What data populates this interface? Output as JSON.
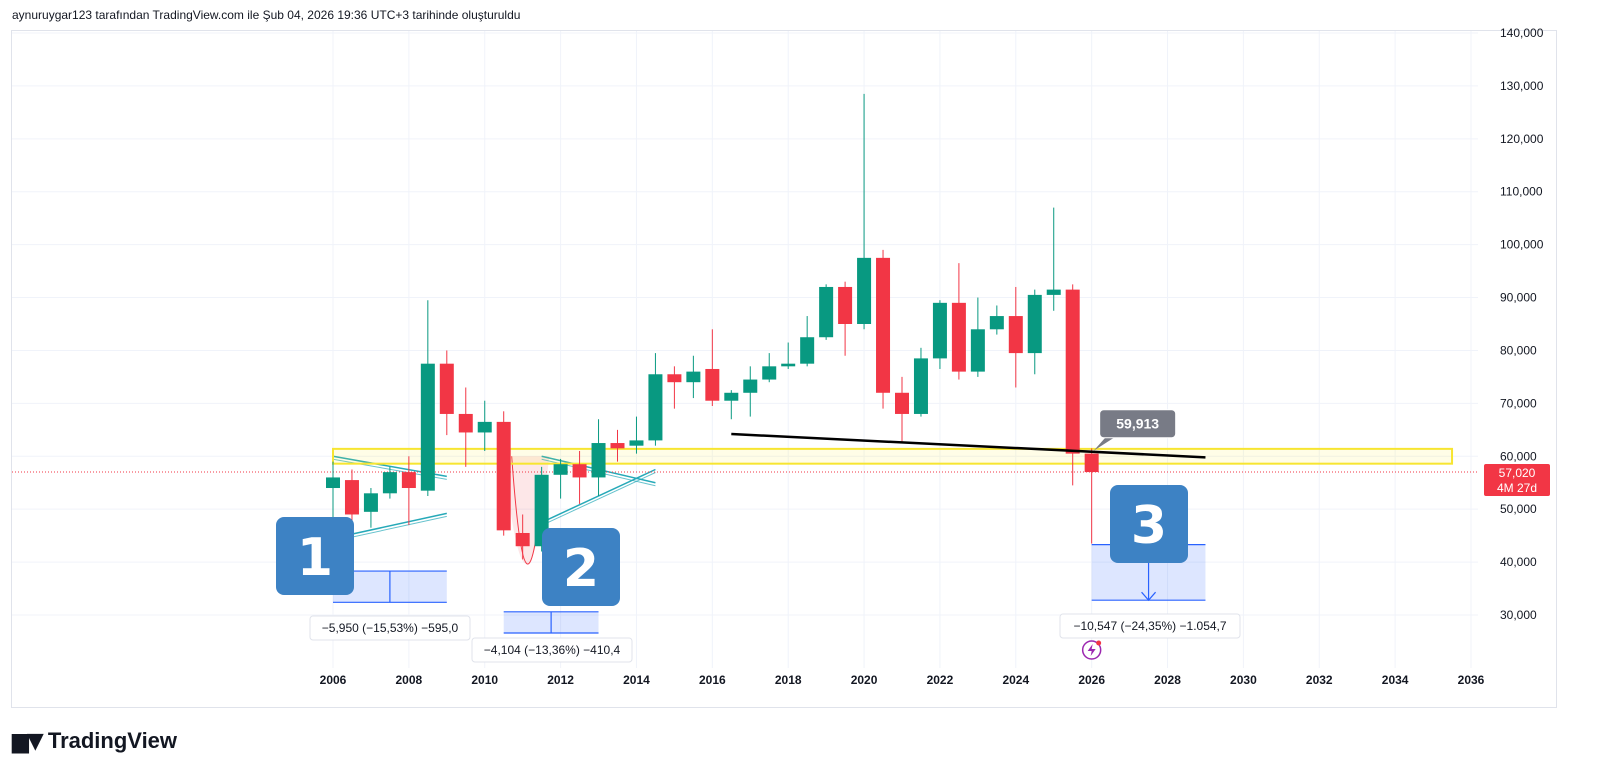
{
  "header": {
    "credit": "aynuruygar123 tarafından TradingView.com ile Şub 04, 2026 19:36 UTC+3 tarihinde oluşturuldu"
  },
  "brand": {
    "name": "TradingView",
    "logo_icon": "tradingview-logo-icon"
  },
  "price_axis": {
    "labels": [
      "140,000",
      "130,000",
      "120,000",
      "110,000",
      "100,000",
      "90,000",
      "80,000",
      "70,000",
      "60,000",
      "50,000",
      "40,000",
      "30,000"
    ],
    "current_price": "57,020",
    "countdown": "4M 27d",
    "current_color": "#f23645"
  },
  "annotations": {
    "callout_value": "59,913",
    "measure_1": "−5,950 (−15,53%) −595,0",
    "measure_2": "−4,104 (−13,36%) −410,4",
    "measure_3": "−10,547 (−24,35%) −1.054,7",
    "labels": [
      "1",
      "2",
      "3"
    ],
    "event_icon": "lightning-icon"
  },
  "colors": {
    "up": "#089981",
    "down": "#f23645",
    "zone": "#f7e531",
    "trend": "#000000",
    "triangle": "#26a9b8",
    "measure": "#2962ff",
    "badge": "#3d82c4"
  },
  "chart_data": {
    "type": "candlestick",
    "interval": "6M",
    "xlabels": [
      "2006",
      "2008",
      "2010",
      "2012",
      "2014",
      "2016",
      "2018",
      "2020",
      "2022",
      "2024",
      "2026",
      "2028",
      "2030",
      "2032",
      "2034",
      "2036"
    ],
    "xlim": [
      2005.5,
      2036.5
    ],
    "ylim": [
      20000,
      141000
    ],
    "candles": [
      {
        "t": 2006.0,
        "o": 54000,
        "h": 59000,
        "l": 48000,
        "c": 56000
      },
      {
        "t": 2006.5,
        "o": 55500,
        "h": 57500,
        "l": 46000,
        "c": 49000
      },
      {
        "t": 2007.0,
        "o": 49500,
        "h": 54000,
        "l": 46500,
        "c": 53000
      },
      {
        "t": 2007.5,
        "o": 53000,
        "h": 58000,
        "l": 52000,
        "c": 57000
      },
      {
        "t": 2008.0,
        "o": 57000,
        "h": 60000,
        "l": 47000,
        "c": 54000
      },
      {
        "t": 2008.5,
        "o": 53500,
        "h": 89500,
        "l": 52500,
        "c": 77500
      },
      {
        "t": 2009.0,
        "o": 77500,
        "h": 80000,
        "l": 64000,
        "c": 68000
      },
      {
        "t": 2009.5,
        "o": 68000,
        "h": 73000,
        "l": 58000,
        "c": 64500
      },
      {
        "t": 2010.0,
        "o": 64500,
        "h": 70500,
        "l": 61000,
        "c": 66500
      },
      {
        "t": 2010.5,
        "o": 66500,
        "h": 68500,
        "l": 45000,
        "c": 46000
      },
      {
        "t": 2011.0,
        "o": 45500,
        "h": 49000,
        "l": 40500,
        "c": 43000
      },
      {
        "t": 2011.5,
        "o": 43000,
        "h": 58000,
        "l": 42000,
        "c": 56500
      },
      {
        "t": 2012.0,
        "o": 56500,
        "h": 59500,
        "l": 52000,
        "c": 58500
      },
      {
        "t": 2012.5,
        "o": 58500,
        "h": 61000,
        "l": 51000,
        "c": 56000
      },
      {
        "t": 2013.0,
        "o": 56000,
        "h": 67000,
        "l": 52500,
        "c": 62500
      },
      {
        "t": 2013.5,
        "o": 62500,
        "h": 65000,
        "l": 59000,
        "c": 61500
      },
      {
        "t": 2014.0,
        "o": 62000,
        "h": 67500,
        "l": 60500,
        "c": 63000
      },
      {
        "t": 2014.5,
        "o": 63000,
        "h": 79500,
        "l": 62000,
        "c": 75500
      },
      {
        "t": 2015.0,
        "o": 75500,
        "h": 77000,
        "l": 69000,
        "c": 74000
      },
      {
        "t": 2015.5,
        "o": 74000,
        "h": 79000,
        "l": 71000,
        "c": 76000
      },
      {
        "t": 2016.0,
        "o": 76500,
        "h": 84000,
        "l": 69500,
        "c": 70500
      },
      {
        "t": 2016.5,
        "o": 70500,
        "h": 72500,
        "l": 67000,
        "c": 72000
      },
      {
        "t": 2017.0,
        "o": 72000,
        "h": 77000,
        "l": 67500,
        "c": 74500
      },
      {
        "t": 2017.5,
        "o": 74500,
        "h": 79500,
        "l": 74000,
        "c": 77000
      },
      {
        "t": 2018.0,
        "o": 77000,
        "h": 81500,
        "l": 76500,
        "c": 77500
      },
      {
        "t": 2018.5,
        "o": 77500,
        "h": 86500,
        "l": 77000,
        "c": 82500
      },
      {
        "t": 2019.0,
        "o": 82500,
        "h": 92500,
        "l": 82000,
        "c": 92000
      },
      {
        "t": 2019.5,
        "o": 92000,
        "h": 93000,
        "l": 79000,
        "c": 85000
      },
      {
        "t": 2020.0,
        "o": 85000,
        "h": 128500,
        "l": 84000,
        "c": 97500
      },
      {
        "t": 2020.5,
        "o": 97500,
        "h": 99000,
        "l": 69000,
        "c": 72000
      },
      {
        "t": 2021.0,
        "o": 72000,
        "h": 75000,
        "l": 62500,
        "c": 68000
      },
      {
        "t": 2021.5,
        "o": 68000,
        "h": 80500,
        "l": 67500,
        "c": 78500
      },
      {
        "t": 2022.0,
        "o": 78500,
        "h": 89500,
        "l": 76500,
        "c": 89000
      },
      {
        "t": 2022.5,
        "o": 89000,
        "h": 96500,
        "l": 74500,
        "c": 76000
      },
      {
        "t": 2023.0,
        "o": 76000,
        "h": 90000,
        "l": 75000,
        "c": 84000
      },
      {
        "t": 2023.5,
        "o": 84000,
        "h": 88500,
        "l": 83000,
        "c": 86500
      },
      {
        "t": 2024.0,
        "o": 86500,
        "h": 92000,
        "l": 73000,
        "c": 79500
      },
      {
        "t": 2024.5,
        "o": 79500,
        "h": 91500,
        "l": 75500,
        "c": 90500
      },
      {
        "t": 2025.0,
        "o": 90500,
        "h": 107000,
        "l": 87500,
        "c": 91500
      },
      {
        "t": 2025.5,
        "o": 91500,
        "h": 92500,
        "l": 54500,
        "c": 60500
      },
      {
        "t": 2026.0,
        "o": 60500,
        "h": 61500,
        "l": 43500,
        "c": 57020
      }
    ],
    "overlays": {
      "zone": {
        "x0": 2006.0,
        "x1": 2035.5,
        "y0": 58600,
        "y1": 61400
      },
      "trendline": {
        "x0": 2016.5,
        "y0": 64200,
        "x1": 2029.0,
        "y1": 59800
      },
      "current_line": 57020,
      "triangle_1": {
        "upper": [
          [
            2006.0,
            60000
          ],
          [
            2009.0,
            56200
          ]
        ],
        "lower": [
          [
            2006.0,
            44500
          ],
          [
            2009.0,
            49200
          ]
        ]
      },
      "triangle_2": {
        "upper": [
          [
            2011.5,
            60000
          ],
          [
            2014.5,
            55000
          ]
        ],
        "lower": [
          [
            2011.5,
            47500
          ],
          [
            2014.5,
            57500
          ]
        ]
      },
      "measure_1": {
        "x0": 2006.0,
        "x1": 2009.0,
        "y0": 38300,
        "y1": 32400
      },
      "measure_2": {
        "x0": 2010.5,
        "x1": 2013.0,
        "y0": 30600,
        "y1": 26600
      },
      "measure_3": {
        "x0": 2026.0,
        "x1": 2029.0,
        "y0": 43300,
        "y1": 32800
      },
      "dip_curve": {
        "x0": 2010.5,
        "x1": 2011.7,
        "y_low": 30700,
        "y_high": 60000
      },
      "callout_anchor": {
        "t": 2026.0,
        "y": 59913
      }
    }
  }
}
